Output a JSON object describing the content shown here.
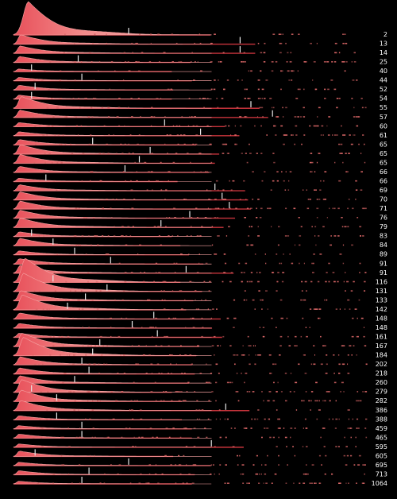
{
  "chart_data": {
    "type": "area",
    "title": "",
    "xlabel": "",
    "ylabel": "",
    "legend": "none",
    "grid": false,
    "row_labels": [
      "2",
      "13",
      "14",
      "25",
      "40",
      "44",
      "52",
      "54",
      "55",
      "57",
      "60",
      "61",
      "65",
      "65",
      "65",
      "66",
      "66",
      "69",
      "70",
      "71",
      "76",
      "79",
      "83",
      "84",
      "89",
      "91",
      "91",
      "116",
      "131",
      "133",
      "142",
      "148",
      "148",
      "161",
      "167",
      "184",
      "202",
      "218",
      "260",
      "279",
      "282",
      "386",
      "388",
      "459",
      "465",
      "595",
      "605",
      "695",
      "713",
      "1064"
    ],
    "peak_heights": [
      1.0,
      0.28,
      0.22,
      0.18,
      0.08,
      0.1,
      0.14,
      0.12,
      0.35,
      0.22,
      0.12,
      0.12,
      0.16,
      0.28,
      0.26,
      0.18,
      0.1,
      0.18,
      0.24,
      0.24,
      0.24,
      0.28,
      0.14,
      0.22,
      0.12,
      0.16,
      0.24,
      0.72,
      0.55,
      0.3,
      0.45,
      0.18,
      0.14,
      0.12,
      0.4,
      0.55,
      0.24,
      0.18,
      0.22,
      0.38,
      0.34,
      0.3,
      0.12,
      0.1,
      0.12,
      0.1,
      0.16,
      0.1,
      0.12,
      0.08
    ],
    "medians": [
      0.32,
      0.63,
      0.63,
      0.18,
      0.05,
      0.19,
      0.06,
      0.05,
      0.66,
      0.72,
      0.42,
      0.52,
      0.22,
      0.38,
      0.35,
      0.31,
      0.09,
      0.56,
      0.58,
      0.6,
      0.49,
      0.41,
      0.05,
      0.11,
      0.17,
      0.27,
      0.48,
      0.11,
      0.26,
      0.2,
      0.15,
      0.39,
      0.33,
      0.4,
      0.24,
      0.22,
      0.19,
      0.21,
      0.17,
      0.05,
      0.12,
      0.59,
      0.12,
      0.19,
      0.19,
      0.55,
      0.06,
      0.32,
      0.21,
      0.19
    ],
    "colors": {
      "background": "#000000",
      "fill": "#f08080",
      "peak": "#e8505a",
      "line": "#c8343c",
      "median": "#e8e8e8",
      "label": "#ffffff",
      "dot": "#d96666"
    }
  }
}
